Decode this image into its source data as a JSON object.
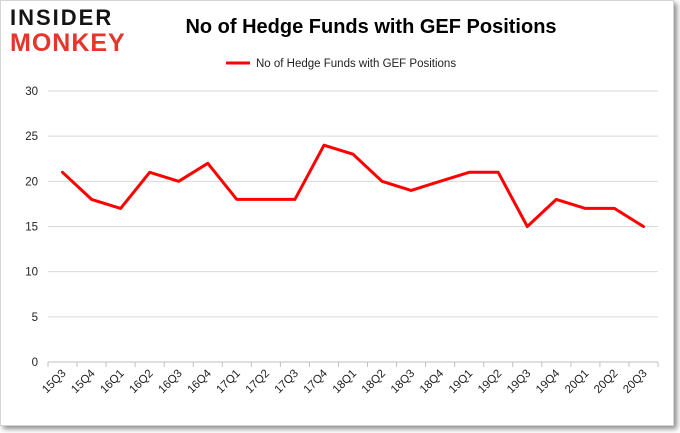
{
  "logo": {
    "line1": "INSIDER",
    "line2": "MONKEY"
  },
  "chart_data": {
    "type": "line",
    "title": "No of Hedge Funds with GEF Positions",
    "xlabel": "",
    "ylabel": "",
    "categories": [
      "15Q3",
      "15Q4",
      "16Q1",
      "16Q2",
      "16Q3",
      "16Q4",
      "17Q1",
      "17Q2",
      "17Q3",
      "17Q4",
      "18Q1",
      "18Q2",
      "18Q3",
      "18Q4",
      "19Q1",
      "19Q2",
      "19Q3",
      "19Q4",
      "20Q1",
      "20Q2",
      "20Q3"
    ],
    "series": [
      {
        "name": "No of Hedge Funds with GEF Positions",
        "color": "#ff0000",
        "values": [
          21,
          18,
          17,
          21,
          20,
          22,
          18,
          18,
          18,
          24,
          23,
          20,
          19,
          20,
          21,
          21,
          15,
          18,
          17,
          17,
          15
        ]
      }
    ],
    "ylim": [
      0,
      30
    ],
    "yticks": [
      0,
      5,
      10,
      15,
      20,
      25,
      30
    ],
    "grid": true,
    "legend": "top-center"
  }
}
